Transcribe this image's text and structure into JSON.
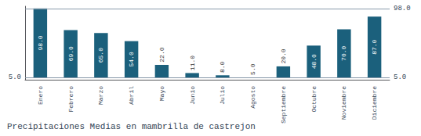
{
  "chart_data": {
    "type": "bar",
    "title": "Precipitaciones Medias en mambrilla de castrejon",
    "categories": [
      "Enero",
      "Febrero",
      "Marzo",
      "Abril",
      "Mayo",
      "Junio",
      "Julio",
      "Agosto",
      "Septiembre",
      "Octubre",
      "Noviembre",
      "Diciembre"
    ],
    "values": [
      98.0,
      69.0,
      65.0,
      54.0,
      22.0,
      11.0,
      8.0,
      5.0,
      20.0,
      48.0,
      70.0,
      87.0
    ],
    "value_labels": [
      "98.0",
      "69.0",
      "65.0",
      "54.0",
      "22.0",
      "11.0",
      "8.0",
      "5.0",
      "20.0",
      "48.0",
      "70.0",
      "87.0"
    ],
    "data_labels": true,
    "color": "#1b607c",
    "bottom": 5,
    "ylim": [
      2,
      101
    ],
    "grid": false,
    "tick_labels": "x",
    "annotations": [
      {
        "text": "5.0",
        "y": 5,
        "side": "left"
      },
      {
        "text": "98.0",
        "y": 98,
        "side": "right"
      },
      {
        "text": "5.0",
        "y": 5,
        "side": "right"
      }
    ]
  }
}
